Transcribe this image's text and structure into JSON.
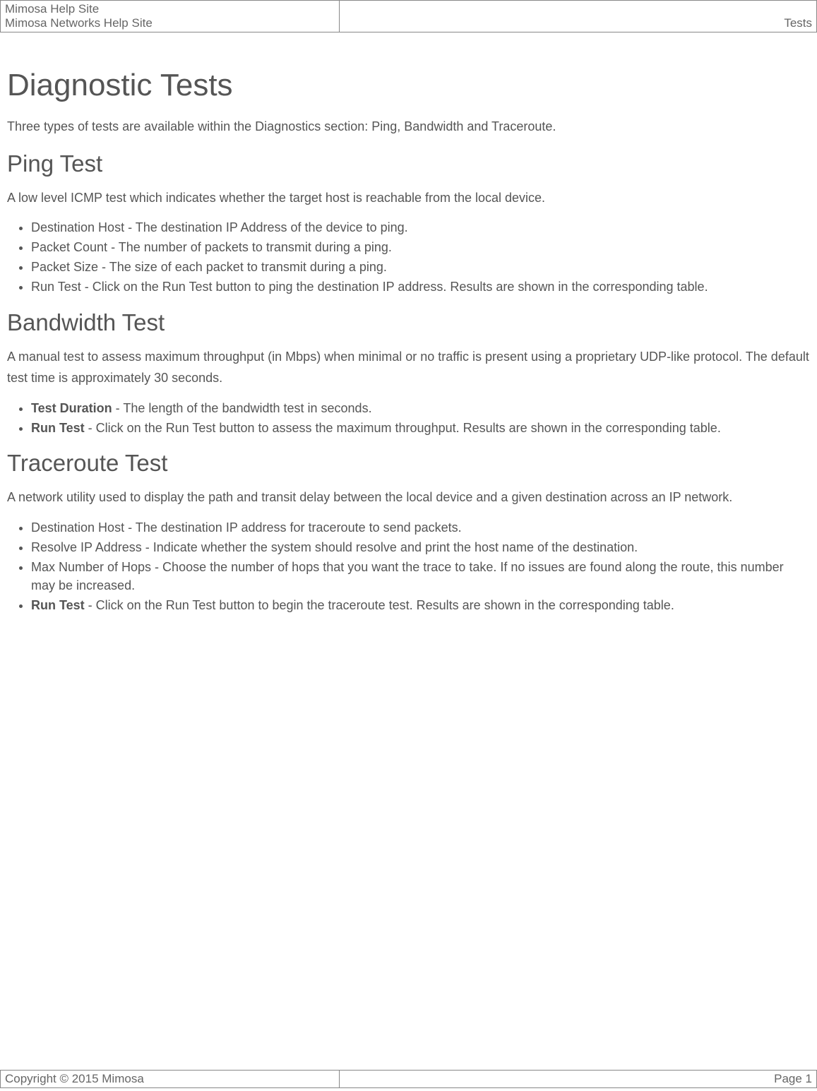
{
  "header": {
    "line1": "Mimosa Help Site",
    "line2": "Mimosa Networks Help Site",
    "right": "Tests"
  },
  "title": "Diagnostic Tests",
  "intro": "Three types of tests are available within the Diagnostics section: Ping, Bandwidth and Traceroute.",
  "sections": {
    "ping": {
      "heading": "Ping Test",
      "desc": "A low level ICMP test which indicates whether the target host is reachable from the local device.",
      "items": [
        {
          "text": "Destination Host - The destination IP Address of the device to ping."
        },
        {
          "text": "Packet Count - The number of packets to transmit during a ping."
        },
        {
          "text": "Packet Size - The size of each packet to transmit during a ping."
        },
        {
          "text": "Run Test - Click on the Run Test button to ping the destination IP address. Results are shown in the corresponding table."
        }
      ]
    },
    "bandwidth": {
      "heading": "Bandwidth Test",
      "desc": "A manual test to assess maximum throughput (in Mbps) when minimal or no traffic is present using a proprietary UDP-like protocol. The default test time is approximately 30 seconds.",
      "items": [
        {
          "boldPrefix": "Test Duration",
          "rest": " - The length of the bandwidth test in seconds."
        },
        {
          "boldPrefix": "Run Test",
          "rest": " - Click on the Run Test button to assess the maximum throughput. Results are shown in the corresponding table."
        }
      ]
    },
    "traceroute": {
      "heading": "Traceroute Test",
      "desc": "A network utility used to display the path and transit delay between the local device and a given destination across an IP network.",
      "items": [
        {
          "text": "Destination Host - The destination IP address for traceroute to send packets."
        },
        {
          "text": "Resolve IP Address - Indicate whether the system should resolve and print the host name of the destination."
        },
        {
          "text": "Max Number of Hops - Choose the number of hops that you want the trace to take. If no issues are found along the route, this number may be increased."
        },
        {
          "boldPrefix": "Run Test",
          "rest": " - Click on the Run Test button to begin the traceroute test. Results are shown in the corresponding table."
        }
      ]
    }
  },
  "footer": {
    "left": "Copyright © 2015 Mimosa",
    "right": "Page 1"
  }
}
